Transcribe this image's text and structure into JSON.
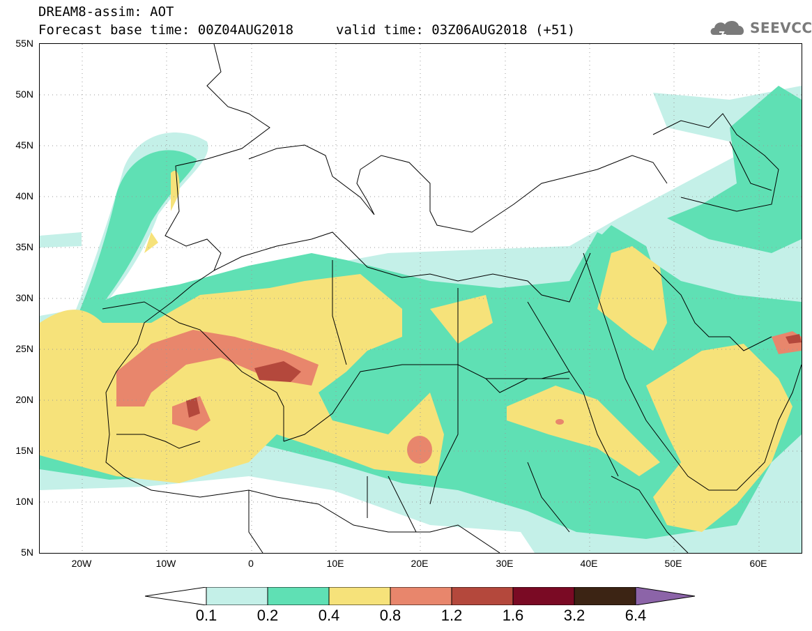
{
  "header": {
    "title": "DREAM8-assim: AOT",
    "base_time": "Forecast base time: 00Z04AUG2018",
    "valid_time": "valid time: 03Z06AUG2018 (+51)"
  },
  "logo": {
    "text": "SEEVCCC",
    "icon": "cloud-icon"
  },
  "map": {
    "lon_range": [
      -25,
      65
    ],
    "lat_range": [
      5,
      55
    ],
    "lat_labels": [
      "55N",
      "50N",
      "45N",
      "40N",
      "35N",
      "30N",
      "25N",
      "20N",
      "15N",
      "10N",
      "5N"
    ],
    "lon_labels": [
      "20W",
      "10W",
      "0",
      "10E",
      "20E",
      "30E",
      "40E",
      "50E",
      "60E"
    ],
    "gridlines": "dotted"
  },
  "colorbar": {
    "labels": [
      "0.1",
      "0.2",
      "0.4",
      "0.8",
      "1.2",
      "1.6",
      "3.2",
      "6.4"
    ],
    "colors": [
      "#ffffff",
      "#c4f0e8",
      "#5fe0b4",
      "#f6e27a",
      "#e8866c",
      "#b4483c",
      "#7a0a24",
      "#3c2414",
      "#8c64a8"
    ]
  }
}
